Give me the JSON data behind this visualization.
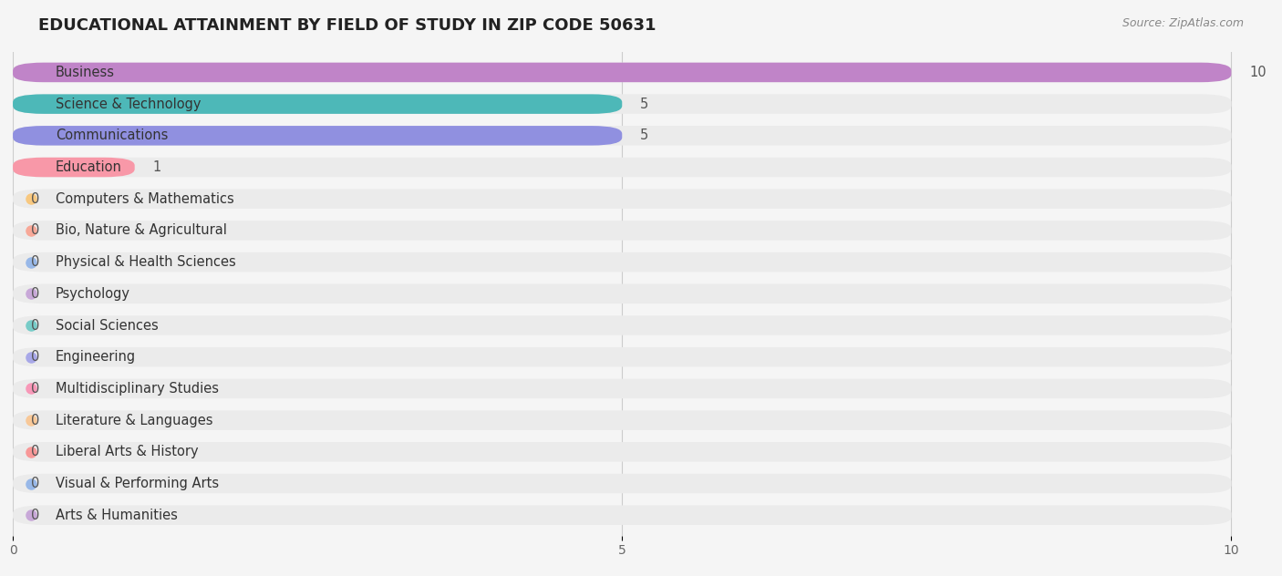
{
  "title": "EDUCATIONAL ATTAINMENT BY FIELD OF STUDY IN ZIP CODE 50631",
  "source": "Source: ZipAtlas.com",
  "categories": [
    "Business",
    "Science & Technology",
    "Communications",
    "Education",
    "Computers & Mathematics",
    "Bio, Nature & Agricultural",
    "Physical & Health Sciences",
    "Psychology",
    "Social Sciences",
    "Engineering",
    "Multidisciplinary Studies",
    "Literature & Languages",
    "Liberal Arts & History",
    "Visual & Performing Arts",
    "Arts & Humanities"
  ],
  "values": [
    10,
    5,
    5,
    1,
    0,
    0,
    0,
    0,
    0,
    0,
    0,
    0,
    0,
    0,
    0
  ],
  "bar_colors": [
    "#c084c8",
    "#4db8b8",
    "#9090e0",
    "#f898a8",
    "#f8c880",
    "#f8a898",
    "#98b8e8",
    "#c8a8d8",
    "#78ccc8",
    "#a8a8e8",
    "#f898b8",
    "#f8c898",
    "#f89898",
    "#98b8e8",
    "#c8a8d8"
  ],
  "xlim": [
    0,
    10
  ],
  "background_color": "#f5f5f5",
  "bar_bg_color": "#ebebeb",
  "title_fontsize": 13,
  "label_fontsize": 10.5,
  "value_fontsize": 10.5
}
